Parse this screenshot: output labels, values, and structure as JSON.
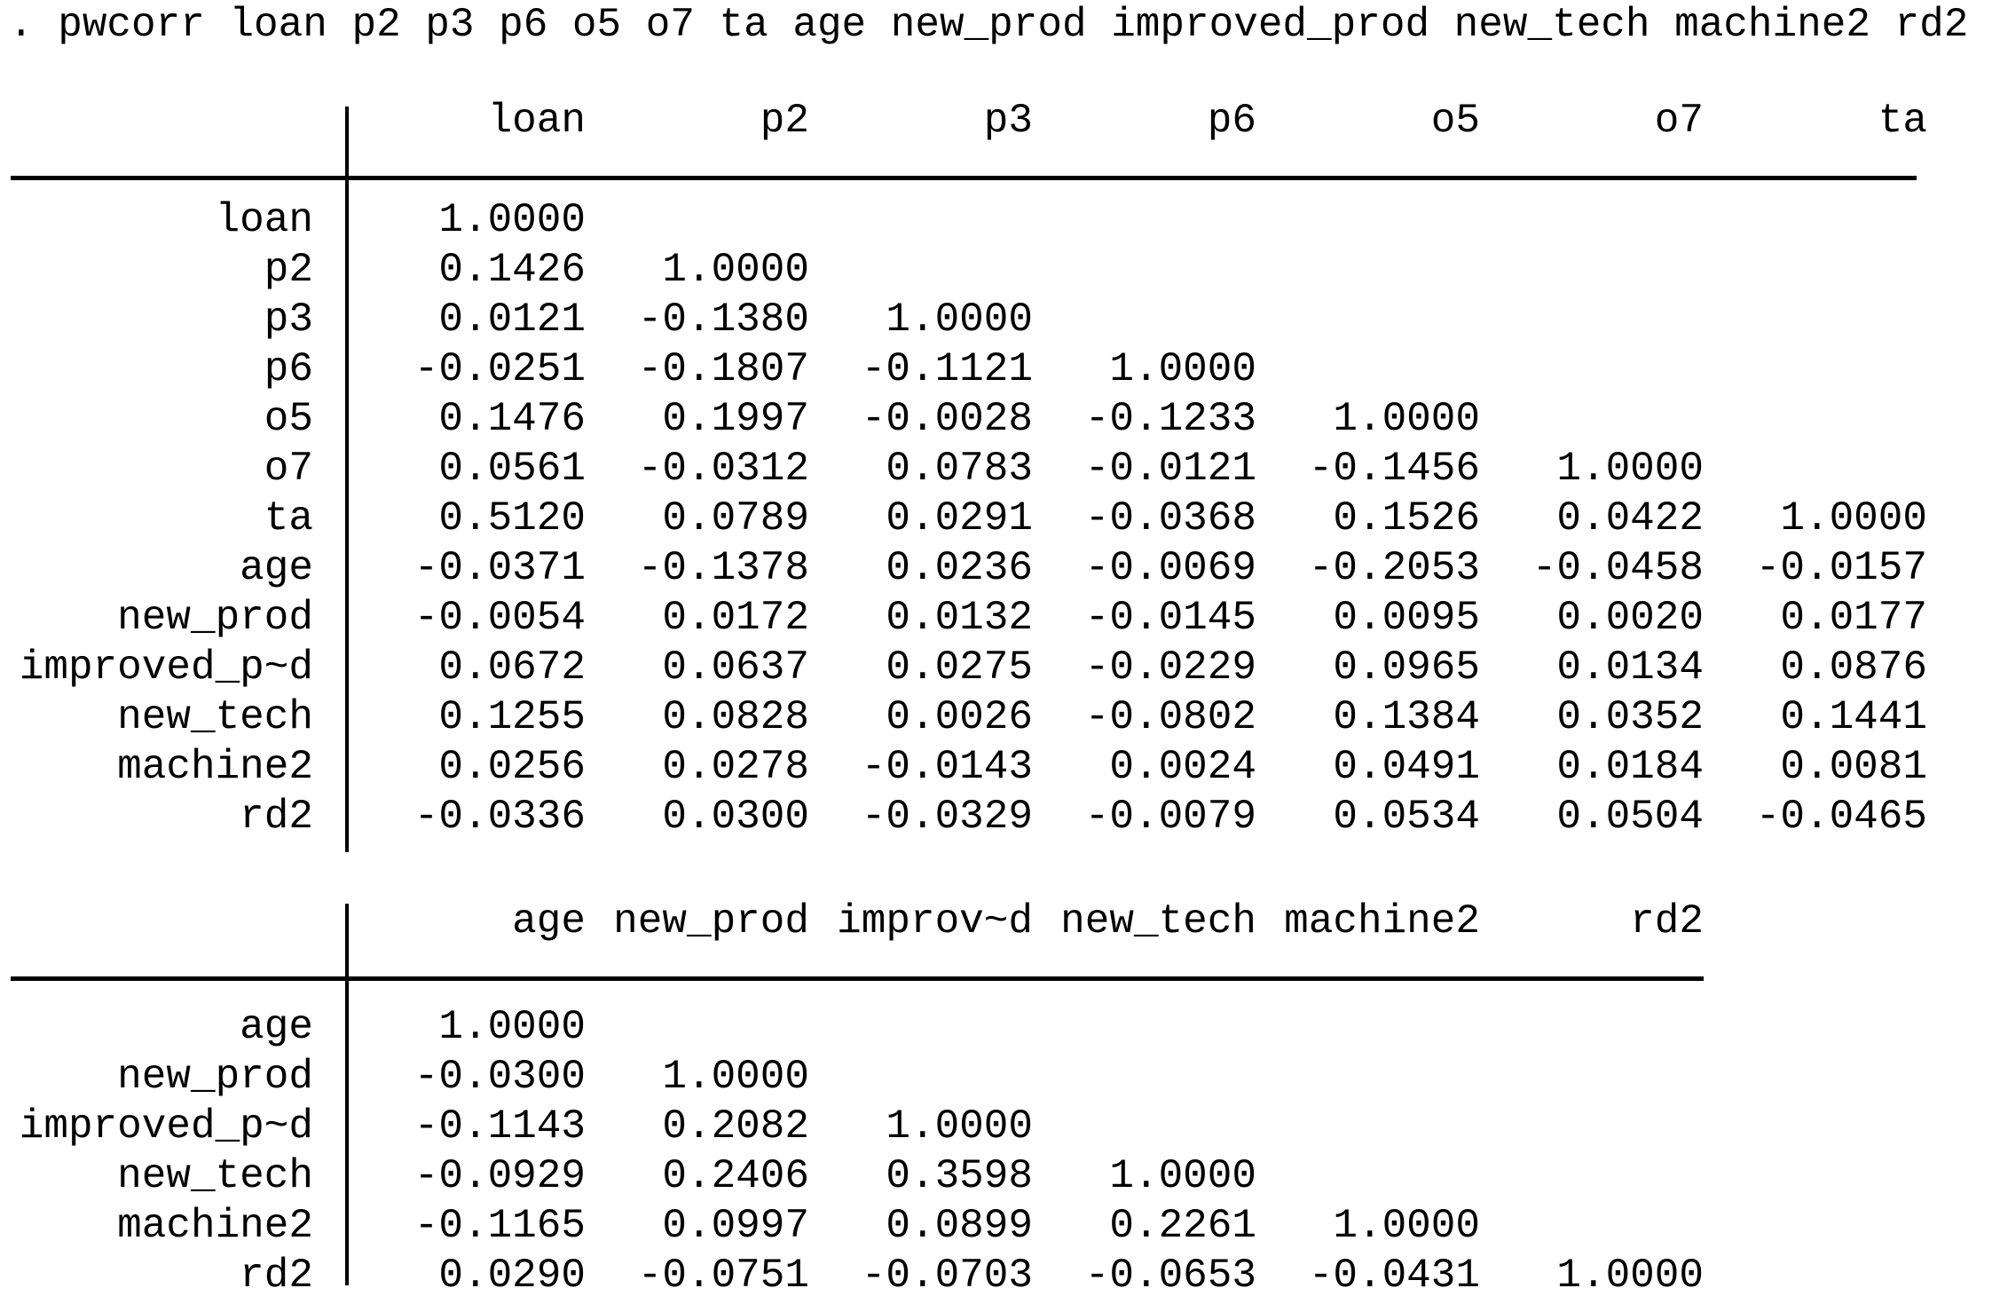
{
  "command_line": ". pwcorr loan p2 p3 p6 o5 o7 ta age new_prod improved_prod new_tech machine2 rd2",
  "table1": {
    "columns": [
      "loan",
      "p2",
      "p3",
      "p6",
      "o5",
      "o7",
      "ta"
    ],
    "rows": [
      {
        "label": "loan",
        "values": [
          "1.0000"
        ]
      },
      {
        "label": "p2",
        "values": [
          "0.1426",
          "1.0000"
        ]
      },
      {
        "label": "p3",
        "values": [
          "0.0121",
          "-0.1380",
          "1.0000"
        ]
      },
      {
        "label": "p6",
        "values": [
          "-0.0251",
          "-0.1807",
          "-0.1121",
          "1.0000"
        ]
      },
      {
        "label": "o5",
        "values": [
          "0.1476",
          "0.1997",
          "-0.0028",
          "-0.1233",
          "1.0000"
        ]
      },
      {
        "label": "o7",
        "values": [
          "0.0561",
          "-0.0312",
          "0.0783",
          "-0.0121",
          "-0.1456",
          "1.0000"
        ]
      },
      {
        "label": "ta",
        "values": [
          "0.5120",
          "0.0789",
          "0.0291",
          "-0.0368",
          "0.1526",
          "0.0422",
          "1.0000"
        ]
      },
      {
        "label": "age",
        "values": [
          "-0.0371",
          "-0.1378",
          "0.0236",
          "-0.0069",
          "-0.2053",
          "-0.0458",
          "-0.0157"
        ]
      },
      {
        "label": "new_prod",
        "values": [
          "-0.0054",
          "0.0172",
          "0.0132",
          "-0.0145",
          "0.0095",
          "0.0020",
          "0.0177"
        ]
      },
      {
        "label": "improved_p~d",
        "values": [
          "0.0672",
          "0.0637",
          "0.0275",
          "-0.0229",
          "0.0965",
          "0.0134",
          "0.0876"
        ]
      },
      {
        "label": "new_tech",
        "values": [
          "0.1255",
          "0.0828",
          "0.0026",
          "-0.0802",
          "0.1384",
          "0.0352",
          "0.1441"
        ]
      },
      {
        "label": "machine2",
        "values": [
          "0.0256",
          "0.0278",
          "-0.0143",
          "0.0024",
          "0.0491",
          "0.0184",
          "0.0081"
        ]
      },
      {
        "label": "rd2",
        "values": [
          "-0.0336",
          "0.0300",
          "-0.0329",
          "-0.0079",
          "0.0534",
          "0.0504",
          "-0.0465"
        ]
      }
    ]
  },
  "table2": {
    "columns": [
      "age",
      "new_prod",
      "improv~d",
      "new_tech",
      "machine2",
      "rd2"
    ],
    "rows": [
      {
        "label": "age",
        "values": [
          "1.0000"
        ]
      },
      {
        "label": "new_prod",
        "values": [
          "-0.0300",
          "1.0000"
        ]
      },
      {
        "label": "improved_p~d",
        "values": [
          "-0.1143",
          "0.2082",
          "1.0000"
        ]
      },
      {
        "label": "new_tech",
        "values": [
          "-0.0929",
          "0.2406",
          "0.3598",
          "1.0000"
        ]
      },
      {
        "label": "machine2",
        "values": [
          "-0.1165",
          "0.0997",
          "0.0899",
          "0.2261",
          "1.0000"
        ]
      },
      {
        "label": "rd2",
        "values": [
          "0.0290",
          "-0.0751",
          "-0.0703",
          "-0.0653",
          "-0.0431",
          "1.0000"
        ]
      }
    ]
  }
}
